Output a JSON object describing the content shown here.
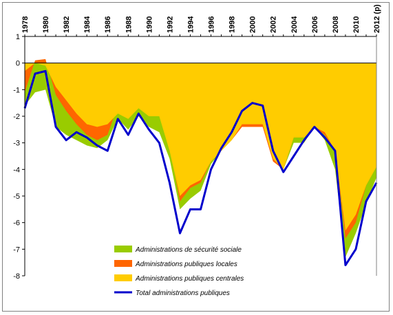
{
  "chart_data": {
    "type": "area",
    "x": [
      "1978",
      "1979",
      "1980",
      "1981",
      "1982",
      "1983",
      "1984",
      "1985",
      "1986",
      "1987",
      "1988",
      "1989",
      "1990",
      "1991",
      "1992",
      "1993",
      "1994",
      "1995",
      "1996",
      "1997",
      "1998",
      "1999",
      "2000",
      "2001",
      "2002",
      "2003",
      "2004",
      "2005",
      "2006",
      "2007",
      "2008",
      "2009",
      "2010",
      "2011",
      "2012 (p)"
    ],
    "x_tick_labels": [
      "1978",
      "1980",
      "1982",
      "1984",
      "1986",
      "1988",
      "1990",
      "1992",
      "1994",
      "1996",
      "1998",
      "2000",
      "2002",
      "2004",
      "2006",
      "2008",
      "2010",
      "2012 (p)"
    ],
    "ylim": [
      -8,
      1
    ],
    "y_ticks": [
      "1",
      "0",
      "-1",
      "-2",
      "-3",
      "-4",
      "-5",
      "-6",
      "-7",
      "-8"
    ],
    "grid": false,
    "legend_position": "bottom-center",
    "series": [
      {
        "name": "Administrations publiques centrales",
        "color": "#FFCC00",
        "values": [
          -0.3,
          0.0,
          -0.1,
          -0.9,
          -1.4,
          -1.9,
          -2.3,
          -2.4,
          -2.3,
          -1.9,
          -2.1,
          -1.7,
          -2.0,
          -2.0,
          -3.3,
          -5.0,
          -4.6,
          -4.4,
          -3.7,
          -3.3,
          -2.9,
          -2.3,
          -2.3,
          -2.3,
          -3.6,
          -4.0,
          -2.8,
          -2.8,
          -2.4,
          -2.6,
          -3.3,
          -6.3,
          -5.7,
          -4.6,
          -3.9
        ]
      },
      {
        "name": "Administrations publiques locales",
        "color": "#FF6600",
        "values": [
          -1.1,
          0.1,
          0.15,
          -1.2,
          -1.8,
          -2.3,
          -2.7,
          -2.9,
          -2.7,
          -1.6,
          -2.0,
          -1.4,
          -1.8,
          -1.8,
          -3.1,
          -5.2,
          -4.7,
          -4.5,
          -3.7,
          -3.3,
          -2.9,
          -2.4,
          -2.4,
          -2.4,
          -3.7,
          -4.0,
          -2.8,
          -2.8,
          -2.4,
          -2.7,
          -3.3,
          -6.6,
          -6.0,
          -4.6,
          -3.9
        ]
      },
      {
        "name": "Administrations de sécurité sociale",
        "color": "#99CC00",
        "values": [
          -1.6,
          -1.1,
          -1.0,
          -2.4,
          -2.7,
          -2.9,
          -3.1,
          -3.2,
          -2.9,
          -2.1,
          -2.5,
          -2.0,
          -2.4,
          -2.6,
          -3.6,
          -5.5,
          -5.1,
          -4.8,
          -3.8,
          -3.3,
          -2.9,
          -2.2,
          -1.6,
          -1.5,
          -3.3,
          -4.0,
          -3.0,
          -3.0,
          -2.4,
          -2.9,
          -4.0,
          -7.3,
          -6.4,
          -5.3,
          -4.3
        ]
      },
      {
        "name": "Total administrations publiques",
        "color": "#0000CC",
        "values": [
          -1.7,
          -0.4,
          -0.3,
          -2.4,
          -2.9,
          -2.6,
          -2.8,
          -3.1,
          -3.3,
          -2.1,
          -2.7,
          -1.9,
          -2.5,
          -3.0,
          -4.5,
          -6.4,
          -5.5,
          -5.5,
          -4.0,
          -3.2,
          -2.6,
          -1.8,
          -1.5,
          -1.6,
          -3.3,
          -4.1,
          -3.5,
          -2.9,
          -2.4,
          -2.8,
          -3.3,
          -7.6,
          -7.0,
          -5.2,
          -4.5
        ]
      }
    ]
  }
}
